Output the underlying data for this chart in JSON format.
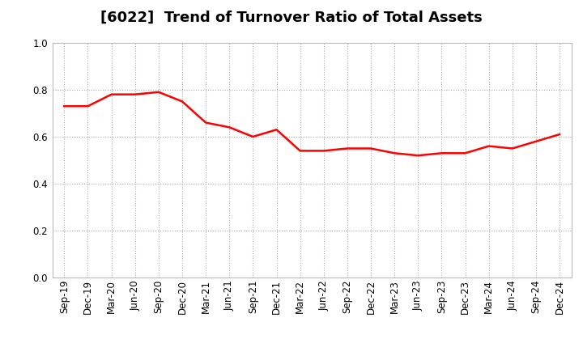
{
  "title": "[6022]  Trend of Turnover Ratio of Total Assets",
  "x_labels": [
    "Sep-19",
    "Dec-19",
    "Mar-20",
    "Jun-20",
    "Sep-20",
    "Dec-20",
    "Mar-21",
    "Jun-21",
    "Sep-21",
    "Dec-21",
    "Mar-22",
    "Jun-22",
    "Sep-22",
    "Dec-22",
    "Mar-23",
    "Jun-23",
    "Sep-23",
    "Dec-23",
    "Mar-24",
    "Jun-24",
    "Sep-24",
    "Dec-24"
  ],
  "y_values": [
    0.73,
    0.73,
    0.78,
    0.78,
    0.79,
    0.75,
    0.66,
    0.64,
    0.6,
    0.63,
    0.54,
    0.54,
    0.55,
    0.55,
    0.53,
    0.52,
    0.53,
    0.53,
    0.56,
    0.55,
    0.58,
    0.61
  ],
  "line_color": "#FF0000",
  "line_width": 1.8,
  "ylim": [
    0.0,
    1.0
  ],
  "yticks": [
    0.0,
    0.2,
    0.4,
    0.6,
    0.8,
    1.0
  ],
  "background_color": "#ffffff",
  "grid_color": "#aaaaaa",
  "title_fontsize": 13,
  "tick_fontsize": 8.5
}
